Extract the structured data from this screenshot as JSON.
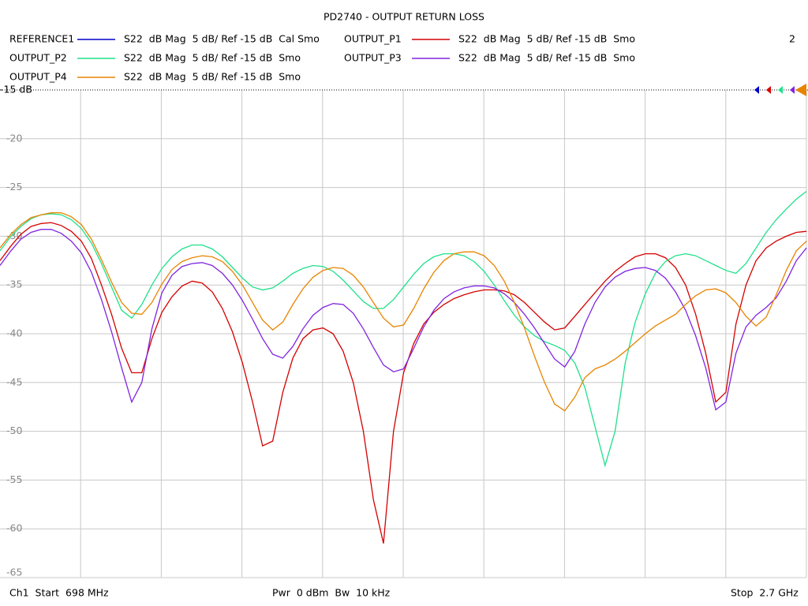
{
  "chart_data": {
    "type": "line",
    "title": "PD2740 - OUTPUT RETURN LOSS",
    "indicator": "2",
    "footer": {
      "start": "Ch1  Start  698 MHz",
      "power": "Pwr  0 dBm  Bw  10 kHz",
      "stop": "Stop  2.7 GHz"
    },
    "xlim": [
      698,
      2700
    ],
    "ylim": [
      -15,
      -65
    ],
    "yticks": [
      {
        "value": -15,
        "label": "-15 dB"
      },
      -20,
      -25,
      -30,
      -35,
      -40,
      -45,
      -50,
      -55,
      -60,
      -65
    ],
    "grid": true,
    "x": [
      698,
      725,
      750,
      775,
      800,
      825,
      850,
      875,
      900,
      925,
      950,
      975,
      1000,
      1025,
      1050,
      1075,
      1100,
      1125,
      1150,
      1175,
      1200,
      1225,
      1250,
      1275,
      1300,
      1325,
      1350,
      1375,
      1400,
      1425,
      1450,
      1475,
      1500,
      1525,
      1550,
      1575,
      1600,
      1625,
      1650,
      1675,
      1700,
      1725,
      1750,
      1775,
      1800,
      1825,
      1850,
      1875,
      1900,
      1925,
      1950,
      1975,
      2000,
      2025,
      2050,
      2075,
      2100,
      2125,
      2150,
      2175,
      2200,
      2225,
      2250,
      2275,
      2300,
      2325,
      2350,
      2375,
      2400,
      2425,
      2450,
      2475,
      2500,
      2525,
      2550,
      2575,
      2600,
      2625,
      2650,
      2675,
      2700
    ],
    "series": [
      {
        "name": "REFERENCE1",
        "format": "S22  dB Mag  5 dB/ Ref -15 dB  Cal Smo",
        "color": "#0000c8"
      },
      {
        "name": "OUTPUT_P1",
        "format": "S22  dB Mag  5 dB/ Ref -15 dB  Smo",
        "color": "#d40000",
        "values": [
          -32.5,
          -31,
          -29.8,
          -29,
          -28.7,
          -28.6,
          -28.9,
          -29.5,
          -30.5,
          -32.3,
          -35,
          -38,
          -41.5,
          -44,
          -44,
          -40.5,
          -37.8,
          -36.2,
          -35.1,
          -34.6,
          -34.8,
          -35.7,
          -37.4,
          -39.8,
          -43,
          -47,
          -51.5,
          -51,
          -46,
          -42.5,
          -40.5,
          -39.6,
          -39.4,
          -40,
          -41.8,
          -45,
          -50,
          -57,
          -61.5,
          -50,
          -44,
          -41,
          -39,
          -37.8,
          -37,
          -36.4,
          -36,
          -35.7,
          -35.5,
          -35.5,
          -35.6,
          -36,
          -36.8,
          -37.8,
          -38.8,
          -39.6,
          -39.4,
          -38.2,
          -37,
          -35.8,
          -34.6,
          -33.6,
          -32.8,
          -32.1,
          -31.8,
          -31.8,
          -32.2,
          -33.2,
          -35,
          -38,
          -42,
          -47,
          -46,
          -39,
          -35,
          -32.5,
          -31.2,
          -30.5,
          -30,
          -29.6,
          -29.5
        ]
      },
      {
        "name": "OUTPUT_P2",
        "format": "S22  dB Mag  5 dB/ Ref -15 dB  Smo",
        "color": "#20e08c",
        "values": [
          -31.5,
          -30,
          -29,
          -28.2,
          -27.8,
          -27.7,
          -27.8,
          -28.3,
          -29.2,
          -30.7,
          -32.8,
          -35.2,
          -37.6,
          -38.4,
          -37,
          -35,
          -33.3,
          -32.1,
          -31.3,
          -30.9,
          -30.9,
          -31.3,
          -32.1,
          -33.2,
          -34.3,
          -35.2,
          -35.5,
          -35.3,
          -34.6,
          -33.8,
          -33.3,
          -33,
          -33.1,
          -33.6,
          -34.5,
          -35.6,
          -36.7,
          -37.4,
          -37.4,
          -36.5,
          -35.2,
          -33.9,
          -32.8,
          -32.1,
          -31.8,
          -31.8,
          -32,
          -32.6,
          -33.6,
          -35,
          -36.6,
          -38.1,
          -39.3,
          -40.2,
          -40.8,
          -41.2,
          -41.7,
          -43,
          -45.5,
          -49.5,
          -53.5,
          -50,
          -43,
          -38.8,
          -35.9,
          -33.8,
          -32.6,
          -32,
          -31.8,
          -32,
          -32.5,
          -33,
          -33.5,
          -33.8,
          -32.8,
          -31.2,
          -29.6,
          -28.3,
          -27.2,
          -26.2,
          -25.4
        ]
      },
      {
        "name": "OUTPUT_P3",
        "format": "S22  dB Mag  5 dB/ Ref -15 dB  Smo",
        "color": "#8024e0",
        "values": [
          -33,
          -31.5,
          -30.3,
          -29.6,
          -29.3,
          -29.3,
          -29.7,
          -30.5,
          -31.7,
          -33.7,
          -36.5,
          -39.8,
          -43.5,
          -47,
          -45,
          -39.5,
          -35.8,
          -34,
          -33.1,
          -32.8,
          -32.7,
          -33,
          -33.8,
          -35,
          -36.6,
          -38.5,
          -40.5,
          -42.1,
          -42.5,
          -41.3,
          -39.5,
          -38.1,
          -37.3,
          -36.9,
          -37,
          -37.9,
          -39.5,
          -41.4,
          -43.2,
          -43.9,
          -43.6,
          -41.5,
          -39.3,
          -37.6,
          -36.4,
          -35.7,
          -35.3,
          -35.1,
          -35.1,
          -35.3,
          -35.9,
          -36.8,
          -38,
          -39.4,
          -41,
          -42.6,
          -43.4,
          -41.8,
          -39,
          -36.8,
          -35.2,
          -34.2,
          -33.6,
          -33.3,
          -33.2,
          -33.5,
          -34.3,
          -35.7,
          -37.6,
          -40.2,
          -43.5,
          -47.8,
          -47,
          -42,
          -39.3,
          -38.1,
          -37.3,
          -36.3,
          -34.6,
          -32.5,
          -31.2
        ]
      },
      {
        "name": "OUTPUT_P4",
        "format": "S22  dB Mag  5 dB/ Ref -15 dB  Smo",
        "color": "#e88400",
        "values": [
          -31.2,
          -29.8,
          -28.8,
          -28.1,
          -27.8,
          -27.6,
          -27.6,
          -28,
          -28.8,
          -30.3,
          -32.4,
          -34.7,
          -36.8,
          -37.9,
          -38,
          -36.8,
          -34.9,
          -33.4,
          -32.6,
          -32.2,
          -32,
          -32.1,
          -32.6,
          -33.6,
          -35,
          -36.8,
          -38.6,
          -39.6,
          -38.8,
          -37,
          -35.4,
          -34.2,
          -33.5,
          -33.2,
          -33.3,
          -34,
          -35.2,
          -36.8,
          -38.4,
          -39.3,
          -39.1,
          -37.4,
          -35.4,
          -33.7,
          -32.5,
          -31.8,
          -31.6,
          -31.6,
          -32,
          -33,
          -34.6,
          -36.8,
          -39.4,
          -42.3,
          -45,
          -47.2,
          -47.9,
          -46.5,
          -44.5,
          -43.6,
          -43.2,
          -42.6,
          -41.8,
          -40.9,
          -40,
          -39.2,
          -38.6,
          -38,
          -37,
          -36.1,
          -35.5,
          -35.4,
          -35.8,
          -36.8,
          -38.2,
          -39.2,
          -38.3,
          -36,
          -33.5,
          -31.5,
          -30.5
        ]
      }
    ]
  }
}
